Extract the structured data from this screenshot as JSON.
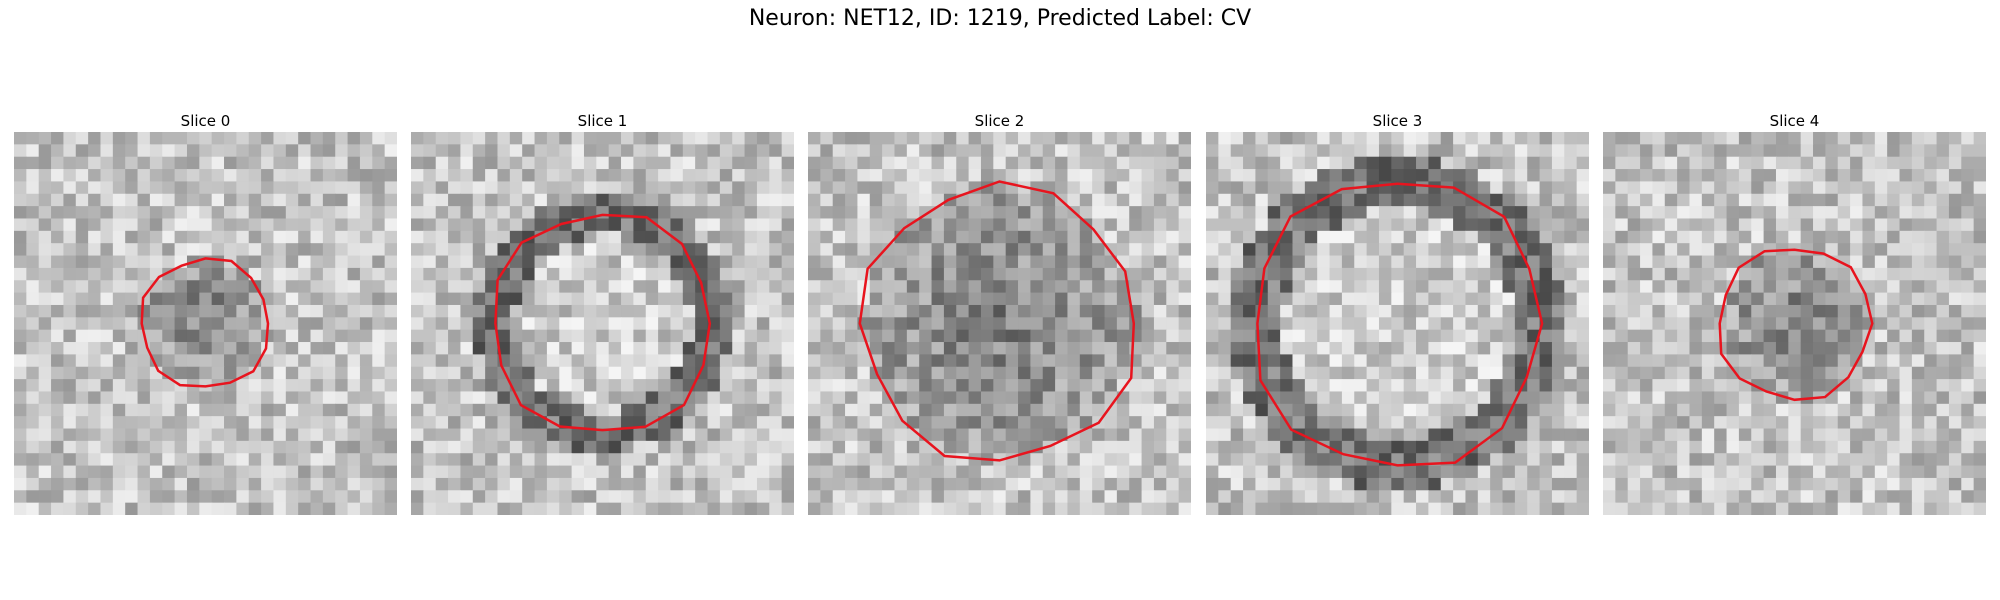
{
  "figure": {
    "title": "Neuron: NET12, ID: 1219, Predicted Label: CV"
  },
  "colors": {
    "contour": "#e8141e",
    "background": "#ffffff"
  },
  "panels": [
    {
      "title": "Slice 0",
      "image": "grayscale-noise-patch",
      "contour": "red-octagon-outline",
      "seed": 11,
      "radius": 0.17,
      "dark_inside": true
    },
    {
      "title": "Slice 1",
      "image": "grayscale-noise-patch",
      "contour": "red-octagon-outline",
      "seed": 23,
      "radius": 0.29,
      "dark_inside": false
    },
    {
      "title": "Slice 2",
      "image": "grayscale-noise-patch",
      "contour": "red-octagon-outline",
      "seed": 37,
      "radius": 0.36,
      "dark_inside": true
    },
    {
      "title": "Slice 3",
      "image": "grayscale-noise-patch",
      "contour": "red-octagon-outline",
      "seed": 41,
      "radius": 0.38,
      "dark_inside": false
    },
    {
      "title": "Slice 4",
      "image": "grayscale-noise-patch",
      "contour": "red-octagon-outline",
      "seed": 53,
      "radius": 0.2,
      "dark_inside": true
    }
  ]
}
